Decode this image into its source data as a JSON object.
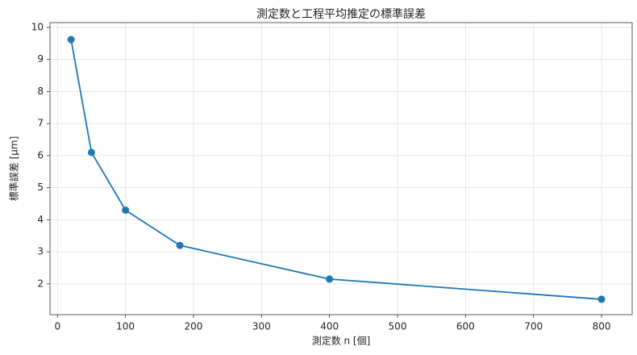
{
  "chart_data": {
    "type": "line",
    "title": "測定数と工程平均推定の標準誤差",
    "x_label": "測定数 n [個]",
    "y_label": "標準誤差 [μm]",
    "x": [
      20,
      50,
      100,
      180,
      400,
      800
    ],
    "series": [
      {
        "name": "標準誤差",
        "color": "#1f77b4",
        "values": [
          9.62,
          6.1,
          4.3,
          3.2,
          2.15,
          1.52
        ]
      }
    ],
    "xlim": [
      -11,
      845
    ],
    "xticks": [
      0,
      100,
      200,
      300,
      400,
      500,
      600,
      700,
      800
    ],
    "ylim": [
      1.04,
      10.15
    ],
    "yticks": [
      2,
      3,
      4,
      5,
      6,
      7,
      8,
      9,
      10
    ],
    "grid": true
  }
}
